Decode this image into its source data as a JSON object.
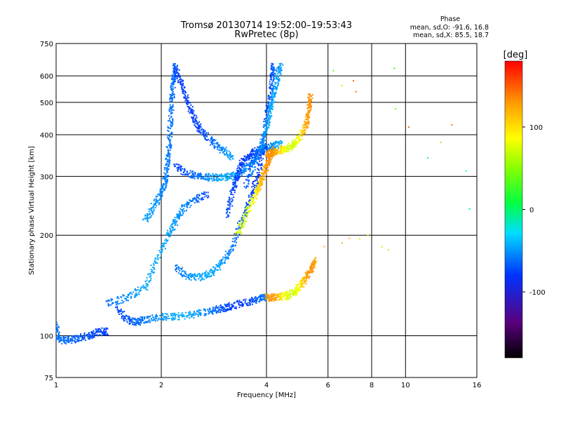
{
  "chart_data": {
    "type": "scatter",
    "title": "Tromsø 20130714 19:52:00–19:53:43",
    "subtitle": "RwPretec (8p)",
    "xlabel": "Frequency [MHz]",
    "ylabel": "Stationary phase Virtual Height [km]",
    "x_scale": "log",
    "y_scale": "log",
    "xlim": [
      1,
      16
    ],
    "ylim": [
      75,
      750
    ],
    "x_ticks": [
      1,
      2,
      4,
      6,
      8,
      10,
      16
    ],
    "x_tick_labels": [
      "1",
      "2",
      "4",
      "6",
      "8",
      "10",
      "16"
    ],
    "y_ticks": [
      75,
      100,
      200,
      300,
      400,
      500,
      600,
      750
    ],
    "y_tick_labels": [
      "75",
      "100",
      "200",
      "300",
      "400",
      "500",
      "600",
      "750"
    ],
    "grid": true,
    "stats": {
      "heading": "Phase",
      "o_line": "mean, sd,O: -91.6, 16.8",
      "x_line": "mean, sd,X:  85.5, 18.7"
    },
    "colorbar": {
      "label": "[deg]",
      "range": [
        -180,
        180
      ],
      "ticks": [
        100,
        0,
        -100
      ],
      "tick_labels": [
        "100",
        "0",
        "-100"
      ]
    },
    "series": [
      {
        "values": [
          [
            1.0,
            107
          ],
          [
            1.02,
            97
          ],
          [
            1.08,
            97
          ],
          [
            1.15,
            98
          ],
          [
            1.25,
            100
          ],
          [
            1.32,
            103
          ],
          [
            1.4,
            103
          ]
        ]
      },
      {
        "values": [
          [
            1.5,
            120
          ],
          [
            1.6,
            111
          ],
          [
            1.7,
            110
          ],
          [
            1.8,
            112
          ],
          [
            2.0,
            114
          ],
          [
            2.2,
            114
          ],
          [
            2.5,
            116
          ],
          [
            2.8,
            119
          ],
          [
            3.0,
            121
          ],
          [
            3.2,
            123
          ],
          [
            3.5,
            126
          ],
          [
            3.8,
            129
          ],
          [
            4.0,
            131
          ]
        ]
      },
      {
        "values": [
          [
            1.4,
            125
          ],
          [
            1.6,
            130
          ],
          [
            1.8,
            140
          ],
          [
            1.95,
            170
          ],
          [
            2.1,
            200
          ],
          [
            2.2,
            220
          ],
          [
            2.3,
            240
          ],
          [
            2.5,
            255
          ],
          [
            2.7,
            265
          ]
        ]
      },
      {
        "values": [
          [
            1.8,
            220
          ],
          [
            1.9,
            245
          ],
          [
            2.0,
            265
          ],
          [
            2.05,
            290
          ],
          [
            2.08,
            320
          ],
          [
            2.1,
            360
          ],
          [
            2.12,
            420
          ],
          [
            2.14,
            500
          ],
          [
            2.16,
            560
          ],
          [
            2.18,
            610
          ],
          [
            2.2,
            640
          ]
        ]
      },
      {
        "values": [
          [
            2.2,
            630
          ],
          [
            2.3,
            560
          ],
          [
            2.4,
            490
          ],
          [
            2.5,
            440
          ],
          [
            2.6,
            410
          ],
          [
            2.8,
            380
          ],
          [
            3.0,
            360
          ],
          [
            3.2,
            340
          ]
        ]
      },
      {
        "values": [
          [
            2.2,
            320
          ],
          [
            2.4,
            305
          ],
          [
            2.6,
            300
          ],
          [
            2.8,
            298
          ],
          [
            3.0,
            298
          ],
          [
            3.2,
            300
          ],
          [
            3.4,
            310
          ],
          [
            3.6,
            330
          ],
          [
            3.8,
            350
          ],
          [
            4.0,
            370
          ]
        ]
      },
      {
        "values": [
          [
            2.2,
            160
          ],
          [
            2.4,
            150
          ],
          [
            2.6,
            150
          ],
          [
            2.8,
            155
          ],
          [
            3.0,
            165
          ],
          [
            3.2,
            185
          ],
          [
            3.4,
            220
          ],
          [
            3.6,
            260
          ],
          [
            3.8,
            300
          ],
          [
            3.9,
            360
          ],
          [
            4.0,
            450
          ],
          [
            4.1,
            520
          ],
          [
            4.15,
            600
          ],
          [
            4.2,
            640
          ]
        ]
      },
      {
        "values": [
          [
            3.1,
            230
          ],
          [
            3.2,
            270
          ],
          [
            3.3,
            300
          ],
          [
            3.4,
            330
          ],
          [
            3.6,
            350
          ],
          [
            3.8,
            360
          ],
          [
            4.0,
            365
          ],
          [
            4.2,
            370
          ],
          [
            4.4,
            375
          ]
        ]
      },
      {
        "values": [
          [
            3.5,
            280
          ],
          [
            3.7,
            330
          ],
          [
            3.9,
            380
          ],
          [
            4.0,
            420
          ],
          [
            4.1,
            470
          ],
          [
            4.2,
            520
          ],
          [
            4.3,
            590
          ],
          [
            4.4,
            650
          ]
        ]
      },
      {
        "values": [
          [
            4.0,
            350
          ],
          [
            4.2,
            355
          ],
          [
            4.4,
            360
          ],
          [
            4.6,
            365
          ],
          [
            4.8,
            375
          ],
          [
            5.0,
            395
          ],
          [
            5.2,
            430
          ],
          [
            5.3,
            480
          ],
          [
            5.35,
            520
          ]
        ]
      },
      {
        "values": [
          [
            3.3,
            200
          ],
          [
            3.5,
            230
          ],
          [
            3.7,
            260
          ],
          [
            3.8,
            280
          ],
          [
            3.9,
            300
          ],
          [
            4.0,
            320
          ],
          [
            4.1,
            340
          ],
          [
            4.2,
            360
          ]
        ]
      },
      {
        "values": [
          [
            4.0,
            130
          ],
          [
            4.2,
            130
          ],
          [
            4.4,
            131
          ],
          [
            4.6,
            132
          ],
          [
            4.8,
            135
          ],
          [
            5.0,
            140
          ],
          [
            5.2,
            150
          ],
          [
            5.4,
            160
          ],
          [
            5.5,
            168
          ]
        ]
      },
      {
        "values": [
          [
            5.8,
            185
          ],
          [
            6.5,
            190
          ],
          [
            7.0,
            195
          ],
          [
            7.5,
            195
          ],
          [
            7.8,
            200
          ],
          [
            8.5,
            185
          ],
          [
            9.0,
            180
          ]
        ]
      },
      {
        "values": [
          [
            6.2,
            620
          ],
          [
            6.6,
            560
          ],
          [
            7.2,
            580
          ],
          [
            7.3,
            540
          ],
          [
            9.3,
            630
          ],
          [
            9.5,
            480
          ],
          [
            10.2,
            420
          ],
          [
            11.6,
            340
          ],
          [
            12.6,
            380
          ],
          [
            13.5,
            430
          ],
          [
            14.8,
            310
          ],
          [
            15.2,
            240
          ]
        ]
      }
    ]
  }
}
